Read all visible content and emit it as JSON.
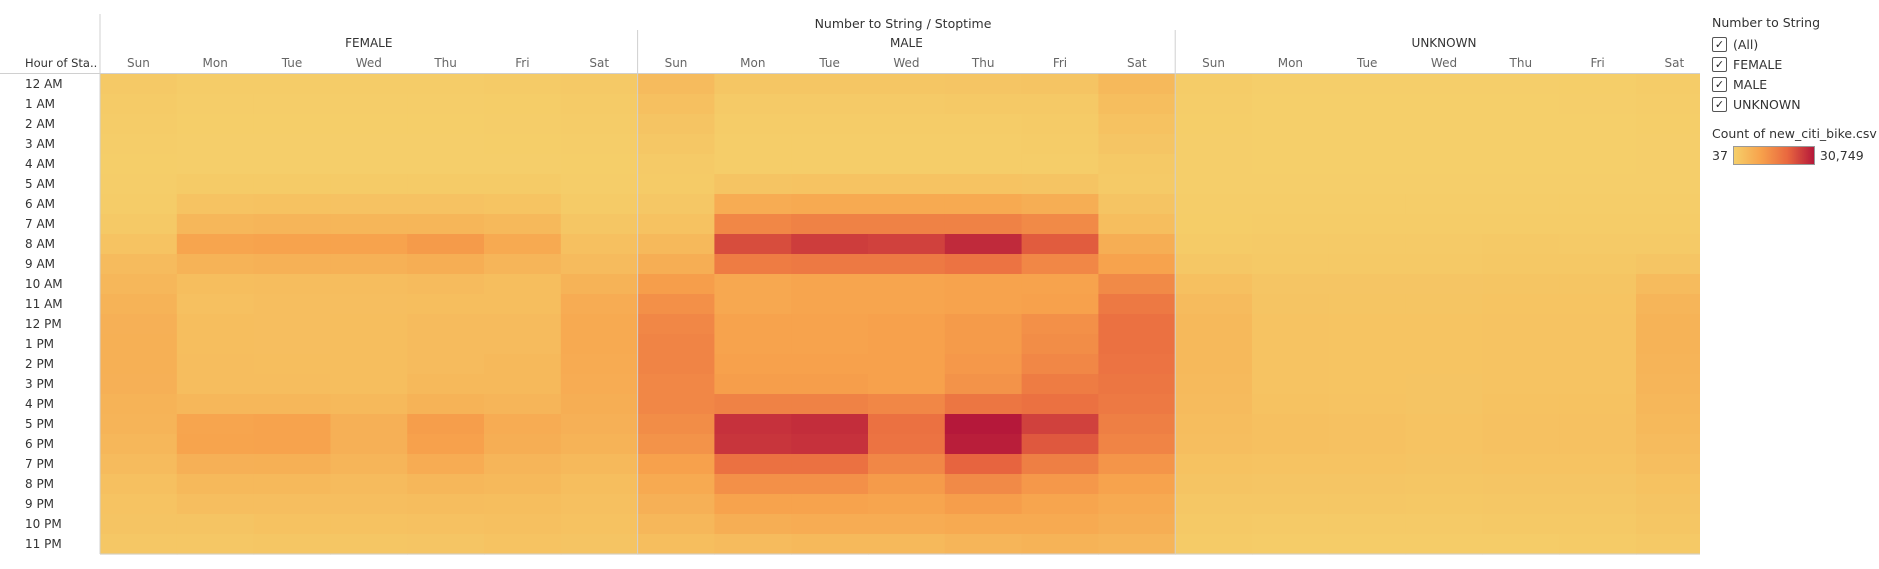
{
  "chart_data": {
    "type": "heatmap",
    "title": "Number to String / Stoptime",
    "row_header": "Hour of Sta..",
    "rows": [
      "12 AM",
      "1 AM",
      "2 AM",
      "3 AM",
      "4 AM",
      "5 AM",
      "6 AM",
      "7 AM",
      "8 AM",
      "9 AM",
      "10 AM",
      "11 AM",
      "12 PM",
      "1 PM",
      "2 PM",
      "3 PM",
      "4 PM",
      "5 PM",
      "6 PM",
      "7 PM",
      "8 PM",
      "9 PM",
      "10 PM",
      "11 PM"
    ],
    "panels": [
      "FEMALE",
      "MALE",
      "UNKNOWN"
    ],
    "days": [
      "Sun",
      "Mon",
      "Tue",
      "Wed",
      "Thu",
      "Fri",
      "Sat"
    ],
    "color_min": 37,
    "color_max": 30749,
    "color_stops": [
      "#f5cf6a",
      "#f7a24c",
      "#e9683f",
      "#b5183a"
    ],
    "values": {
      "FEMALE": [
        [
          1500,
          800,
          800,
          800,
          800,
          900,
          1500
        ],
        [
          1000,
          500,
          500,
          500,
          500,
          600,
          1000
        ],
        [
          700,
          300,
          300,
          300,
          300,
          400,
          700
        ],
        [
          500,
          200,
          200,
          200,
          200,
          300,
          500
        ],
        [
          300,
          200,
          200,
          200,
          200,
          200,
          300
        ],
        [
          400,
          1000,
          1000,
          1000,
          1000,
          1000,
          400
        ],
        [
          800,
          2800,
          3000,
          2900,
          2900,
          2600,
          1000
        ],
        [
          1500,
          5500,
          6000,
          5800,
          5800,
          5000,
          2000
        ],
        [
          2800,
          9500,
          10000,
          10000,
          11500,
          8500,
          3500
        ],
        [
          4500,
          6500,
          6800,
          6800,
          7500,
          6000,
          4500
        ],
        [
          5500,
          4000,
          4200,
          4200,
          4500,
          4000,
          6500
        ],
        [
          6500,
          3500,
          3800,
          3800,
          4000,
          4000,
          8000
        ],
        [
          7000,
          4000,
          3800,
          4000,
          4500,
          4500,
          8500
        ],
        [
          7200,
          4000,
          3800,
          4000,
          4500,
          4500,
          8500
        ],
        [
          7200,
          4200,
          4000,
          4000,
          4500,
          5000,
          8200
        ],
        [
          7000,
          4200,
          4200,
          4000,
          5000,
          5000,
          8000
        ],
        [
          6500,
          5500,
          5500,
          5000,
          6500,
          6000,
          7500
        ],
        [
          6200,
          9500,
          10000,
          7000,
          11000,
          8000,
          7000
        ],
        [
          5500,
          9800,
          10000,
          7000,
          10500,
          7500,
          6500
        ],
        [
          4500,
          7000,
          7200,
          6000,
          8000,
          6000,
          5000
        ],
        [
          3500,
          5000,
          5000,
          4500,
          5500,
          5000,
          4000
        ],
        [
          2800,
          3800,
          3800,
          3800,
          4200,
          4000,
          3500
        ],
        [
          2500,
          2500,
          3000,
          3000,
          3200,
          3500,
          3000
        ],
        [
          1800,
          1800,
          2000,
          2000,
          2200,
          2800,
          2500
        ]
      ],
      "MALE": [
        [
          4500,
          2000,
          2000,
          2000,
          2200,
          2500,
          5000
        ],
        [
          3500,
          1200,
          1200,
          1200,
          1300,
          1500,
          4000
        ],
        [
          2500,
          700,
          700,
          700,
          800,
          900,
          3000
        ],
        [
          1800,
          500,
          500,
          500,
          500,
          700,
          2200
        ],
        [
          1200,
          500,
          500,
          500,
          500,
          500,
          1500
        ],
        [
          1000,
          2500,
          2800,
          2700,
          2800,
          2500,
          1200
        ],
        [
          1800,
          8000,
          8500,
          8500,
          8500,
          7500,
          2500
        ],
        [
          3000,
          15000,
          16000,
          16000,
          16000,
          14500,
          4000
        ],
        [
          5000,
          24000,
          26000,
          25500,
          28500,
          22000,
          7500
        ],
        [
          7500,
          17000,
          17500,
          17500,
          18500,
          15000,
          10000
        ],
        [
          11000,
          9000,
          9500,
          9500,
          10000,
          10000,
          14500
        ],
        [
          13500,
          9000,
          9500,
          9500,
          10000,
          10500,
          17500
        ],
        [
          15000,
          10000,
          10000,
          10500,
          11500,
          13500,
          19000
        ],
        [
          15500,
          10000,
          10000,
          10500,
          11500,
          14000,
          19000
        ],
        [
          15500,
          10500,
          10500,
          10500,
          12000,
          15000,
          18500
        ],
        [
          15000,
          11000,
          11000,
          10500,
          13000,
          17000,
          18000
        ],
        [
          15000,
          16000,
          16000,
          15000,
          18000,
          19000,
          17500
        ],
        [
          14000,
          27500,
          28000,
          19000,
          30749,
          25500,
          16500
        ],
        [
          13000,
          27000,
          27500,
          18500,
          30000,
          22500,
          15500
        ],
        [
          10500,
          19000,
          19000,
          15000,
          21000,
          16500,
          12500
        ],
        [
          8500,
          13500,
          13500,
          11500,
          14500,
          12000,
          10000
        ],
        [
          7000,
          10000,
          10000,
          9500,
          11000,
          9500,
          8500
        ],
        [
          5500,
          7500,
          8000,
          8000,
          8500,
          8500,
          7500
        ],
        [
          4000,
          4500,
          5000,
          5000,
          6000,
          6500,
          6000
        ]
      ],
      "UNKNOWN": [
        [
          700,
          200,
          200,
          200,
          200,
          300,
          700
        ],
        [
          500,
          100,
          100,
          100,
          100,
          200,
          500
        ],
        [
          300,
          100,
          100,
          100,
          100,
          100,
          300
        ],
        [
          200,
          37,
          37,
          37,
          37,
          100,
          200
        ],
        [
          200,
          37,
          37,
          37,
          37,
          37,
          200
        ],
        [
          200,
          200,
          200,
          200,
          200,
          200,
          200
        ],
        [
          400,
          400,
          400,
          400,
          400,
          400,
          400
        ],
        [
          600,
          800,
          800,
          800,
          800,
          800,
          700
        ],
        [
          1000,
          1200,
          1200,
          1200,
          1300,
          1200,
          1200
        ],
        [
          1800,
          1500,
          1500,
          1500,
          1600,
          1600,
          2200
        ],
        [
          3500,
          2200,
          2200,
          2200,
          2400,
          2400,
          4500
        ],
        [
          4500,
          2500,
          2400,
          2400,
          2600,
          2600,
          6000
        ],
        [
          5000,
          2700,
          2600,
          2600,
          2800,
          2800,
          6500
        ],
        [
          5000,
          2800,
          2600,
          2600,
          2800,
          2800,
          6500
        ],
        [
          5000,
          2800,
          2600,
          2600,
          2800,
          2800,
          6200
        ],
        [
          4800,
          2800,
          2600,
          2500,
          2800,
          2800,
          6000
        ],
        [
          4500,
          3000,
          2800,
          2500,
          3000,
          3000,
          5500
        ],
        [
          4200,
          3500,
          3200,
          2800,
          3200,
          3200,
          5000
        ],
        [
          3800,
          3500,
          3200,
          2800,
          3200,
          3200,
          4500
        ],
        [
          3000,
          2800,
          2800,
          2500,
          2800,
          2800,
          3800
        ],
        [
          2500,
          2200,
          2200,
          2000,
          2200,
          2200,
          3000
        ],
        [
          1800,
          1800,
          1800,
          1600,
          1800,
          1800,
          2500
        ],
        [
          1500,
          1200,
          1200,
          1200,
          1300,
          1500,
          2000
        ],
        [
          1000,
          800,
          800,
          800,
          800,
          1000,
          1500
        ]
      ]
    }
  },
  "legend": {
    "filter_title": "Number to String",
    "items": [
      {
        "label": "(All)",
        "checked": true
      },
      {
        "label": "FEMALE",
        "checked": true
      },
      {
        "label": "MALE",
        "checked": true
      },
      {
        "label": "UNKNOWN",
        "checked": true
      }
    ],
    "color_title": "Count of new_citi_bike.csv",
    "min_label": "37",
    "max_label": "30,749"
  }
}
